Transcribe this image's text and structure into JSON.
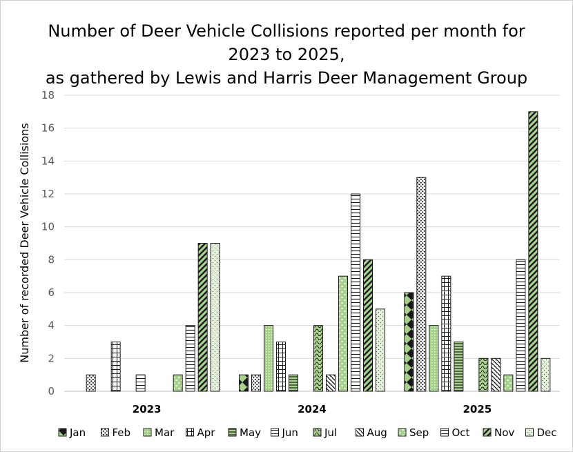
{
  "chart_data": {
    "type": "bar",
    "title": "Number of Deer Vehicle Collisions reported per month for 2023 to 2025, as gathered by Lewis and Harris Deer Management Group",
    "title_lines": [
      "Number of Deer Vehicle Collisions reported per month for",
      "2023 to 2025,",
      "as gathered by Lewis and Harris Deer Management Group"
    ],
    "xlabel": "",
    "ylabel": "Number of recorded Deer Vehicle Collisions",
    "ylim": [
      0,
      18
    ],
    "yticks": [
      0,
      2,
      4,
      6,
      8,
      10,
      12,
      14,
      16,
      18
    ],
    "grid": true,
    "legend_position": "bottom",
    "categories": [
      "2023",
      "2024",
      "2025"
    ],
    "series": [
      {
        "name": "Jan",
        "values": [
          0,
          1,
          6
        ]
      },
      {
        "name": "Feb",
        "values": [
          1,
          1,
          13
        ]
      },
      {
        "name": "Mar",
        "values": [
          0,
          4,
          4
        ]
      },
      {
        "name": "Apr",
        "values": [
          3,
          3,
          7
        ]
      },
      {
        "name": "May",
        "values": [
          0,
          1,
          3
        ]
      },
      {
        "name": "Jun",
        "values": [
          1,
          0,
          0
        ]
      },
      {
        "name": "Jul",
        "values": [
          0,
          4,
          2
        ]
      },
      {
        "name": "Aug",
        "values": [
          0,
          1,
          2
        ]
      },
      {
        "name": "Sep",
        "values": [
          1,
          7,
          1
        ]
      },
      {
        "name": "Oct",
        "values": [
          4,
          12,
          8
        ]
      },
      {
        "name": "Nov",
        "values": [
          9,
          8,
          17
        ]
      },
      {
        "name": "Dec",
        "values": [
          9,
          5,
          2
        ]
      }
    ]
  }
}
